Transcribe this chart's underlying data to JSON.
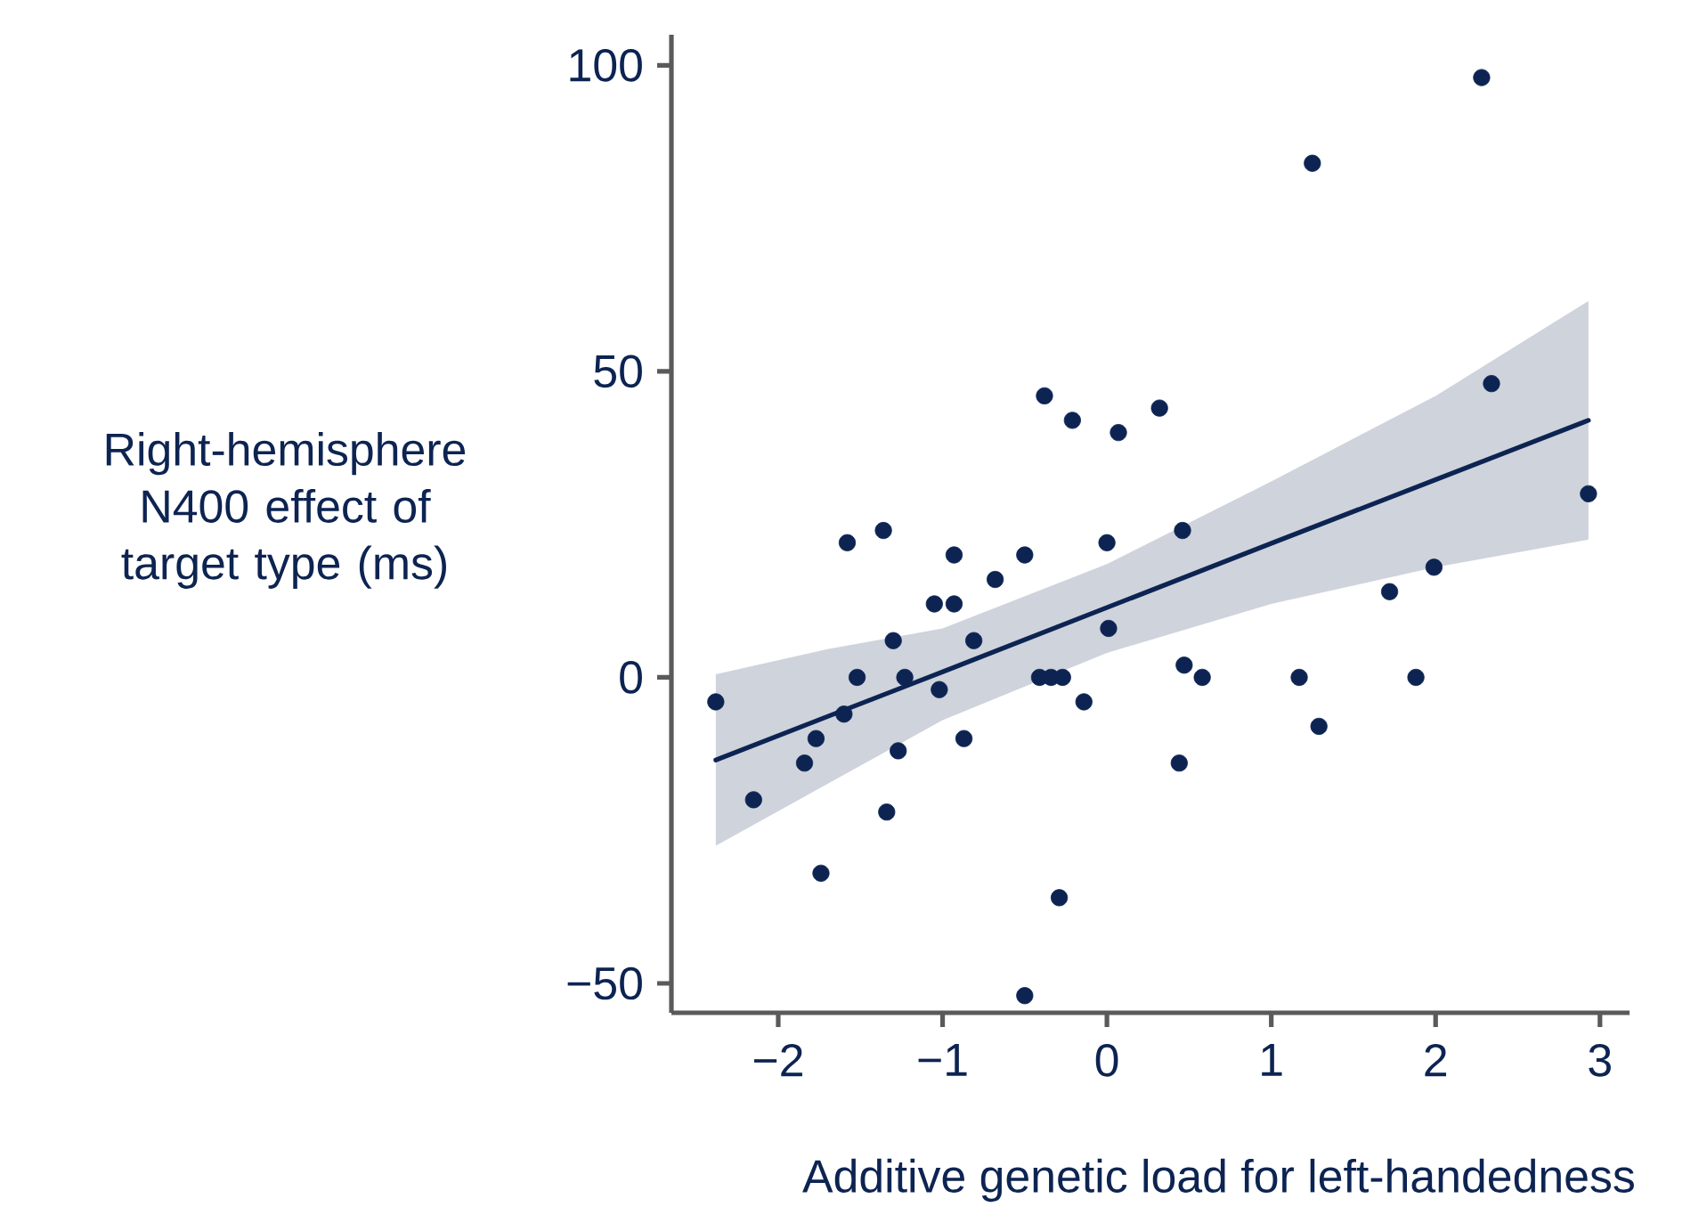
{
  "chart_data": {
    "type": "scatter",
    "xlabel": "Additive genetic load for left-handedness",
    "ylabel": "Right-hemisphere N400 effect of target type (ms)",
    "xlim": [
      -2.65,
      3.18
    ],
    "ylim": [
      -54.8,
      105
    ],
    "xticks": [
      {
        "value": -2,
        "label": "−2"
      },
      {
        "value": -1,
        "label": "−1"
      },
      0,
      1,
      2,
      3
    ],
    "yticks": [
      {
        "value": -50,
        "label": "−50"
      },
      0,
      50,
      100
    ],
    "grid": false,
    "marker": "circle",
    "series": [
      {
        "color": "#0d2452",
        "x": [
          -2.38,
          -2.15,
          -1.84,
          -1.77,
          -1.74,
          -1.6,
          -1.58,
          -1.52,
          -1.36,
          -1.34,
          -1.3,
          -1.27,
          -1.23,
          -1.05,
          -1.02,
          -0.93,
          -0.93,
          -0.87,
          -0.81,
          -0.68,
          -0.5,
          -0.5,
          -0.41,
          -0.38,
          -0.34,
          -0.29,
          -0.27,
          -0.21,
          -0.14,
          0.0,
          0.01,
          0.07,
          0.32,
          0.44,
          0.46,
          0.47,
          0.58,
          1.17,
          1.25,
          1.29,
          1.72,
          1.88,
          1.99,
          2.28,
          2.34,
          2.93
        ],
        "values": [
          -4,
          -20,
          -14,
          -10,
          -32,
          -6,
          22,
          0,
          24,
          -22,
          6,
          -12,
          0,
          12,
          -2,
          20,
          12,
          -10,
          6,
          16,
          20,
          -52,
          0,
          46,
          0,
          -36,
          0,
          42,
          -4,
          22,
          8,
          40,
          44,
          -14,
          24,
          2,
          0,
          0,
          84,
          -8,
          14,
          0,
          18,
          98,
          48,
          30
        ]
      },
      {
        "type": "line",
        "color": "#0d2452",
        "marker": "none",
        "x": [
          -2.38,
          -1.7,
          -1.0,
          0.0,
          1.0,
          2.0,
          2.93
        ],
        "values": [
          -13.5,
          -6.4,
          0.9,
          11.4,
          21.9,
          32.3,
          42
        ],
        "lower": [
          -27.5,
          -17.4,
          -7,
          4,
          12,
          18,
          22.5
        ],
        "upper": [
          0.5,
          4.6,
          8,
          18.5,
          32,
          46,
          61.5
        ]
      }
    ]
  }
}
